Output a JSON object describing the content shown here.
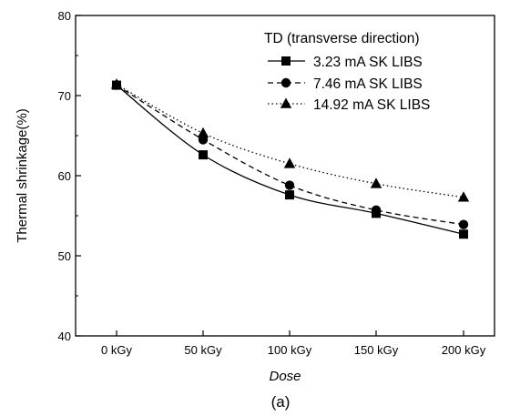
{
  "chart_data": {
    "type": "line",
    "title": "",
    "xlabel": "Dose",
    "ylabel": "Thermal shrinkage(%)",
    "caption": "(a)",
    "categories": [
      "0 kGy",
      "50 kGy",
      "100 kGy",
      "150 kGy",
      "200 kGy"
    ],
    "ylim": [
      40,
      80
    ],
    "yticks": [
      40,
      50,
      60,
      70,
      80
    ],
    "grid": false,
    "legend": {
      "title": "TD (transverse direction)",
      "position": "top-right"
    },
    "series": [
      {
        "name": "3.23 mA SK LIBS",
        "values": [
          71.3,
          62.6,
          57.6,
          55.3,
          52.7
        ],
        "line_style": "solid",
        "marker": "square"
      },
      {
        "name": "7.46 mA SK LIBS",
        "values": [
          71.3,
          64.5,
          58.8,
          55.7,
          53.9
        ],
        "line_style": "dashed",
        "marker": "circle"
      },
      {
        "name": "14.92 mA SK LIBS",
        "values": [
          71.4,
          65.3,
          61.5,
          59.0,
          57.3
        ],
        "line_style": "dotted",
        "marker": "triangle"
      }
    ]
  }
}
